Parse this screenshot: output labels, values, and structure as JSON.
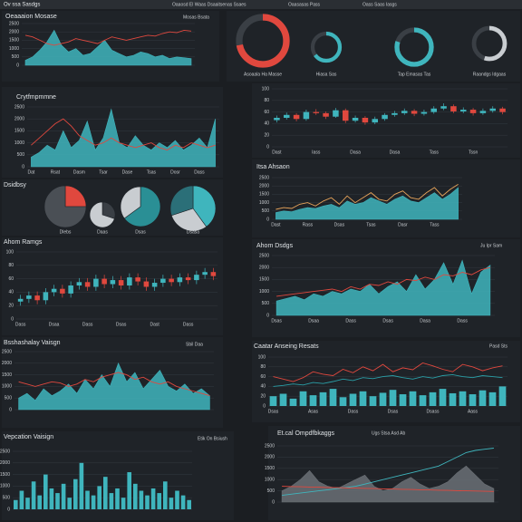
{
  "header": {
    "title": "Ov ssa Sasdgs",
    "items": [
      "Oaaosd El Waas Dsaaitsenas Ssaes",
      "Oaasasas Pass",
      "Oass Saas Iasgs"
    ]
  },
  "chart_data": [
    {
      "type": "area",
      "title": "Oeaaaion Mosase",
      "legend": "Mosas Bsata",
      "grid": true,
      "ylim": [
        0,
        2500
      ],
      "yticks": [
        0,
        500,
        1000,
        1500,
        2000,
        2500
      ],
      "series": [
        {
          "name": "Teal",
          "style": "area",
          "color": "#3fb5bd",
          "values": [
            300,
            500,
            900,
            1400,
            2100,
            1200,
            800,
            1000,
            600,
            700,
            1100,
            1500,
            900,
            700,
            500,
            600,
            800,
            700,
            500,
            600,
            400,
            500,
            450,
            400
          ]
        },
        {
          "name": "Red",
          "style": "line",
          "color": "#e0483e",
          "values": [
            1800,
            1700,
            1500,
            1300,
            1200,
            1300,
            1400,
            1600,
            1500,
            1400,
            1300,
            1500,
            1700,
            1600,
            1500,
            1600,
            1700,
            1800,
            1750,
            1900,
            2000,
            1950,
            2100,
            2050
          ]
        }
      ]
    },
    {
      "type": "donut",
      "categories": [
        "Asoaala Ha Masse",
        "Hiasa Sas",
        "Tap Emasas Tas",
        "Raandgs Idgaas"
      ],
      "values": [
        72,
        65,
        80,
        55
      ],
      "colors": [
        "#e0483e",
        "#3fb5bd",
        "#3fb5bd",
        "#c9cdd1"
      ]
    },
    {
      "type": "area",
      "title": "Crytfmpmmne",
      "grid": true,
      "ylim": [
        0,
        2500
      ],
      "yticks": [
        0,
        500,
        1000,
        1500,
        2000,
        2500
      ],
      "categories": [
        "Dat",
        null,
        null,
        "Rsat",
        null,
        null,
        "Dasm",
        null,
        null,
        "Tsar",
        null,
        null,
        "Dase",
        null,
        null,
        "Tsas",
        null,
        null,
        "Dosr",
        null,
        null,
        "Dass",
        null,
        null
      ],
      "series": [
        {
          "name": "Teal",
          "style": "area",
          "color": "#3fb5bd",
          "values": [
            400,
            600,
            900,
            700,
            1500,
            800,
            1100,
            1900,
            700,
            1200,
            2400,
            1000,
            800,
            1300,
            900,
            700,
            1000,
            800,
            1100,
            700,
            900,
            1200,
            800,
            2000
          ]
        },
        {
          "name": "Red",
          "style": "line",
          "color": "#e0483e",
          "values": [
            900,
            1200,
            1500,
            1800,
            2000,
            1700,
            1300,
            1100,
            900,
            1000,
            1200,
            1000,
            900,
            800,
            900,
            1000,
            800,
            700,
            900,
            800,
            1000,
            900,
            800,
            900
          ]
        }
      ]
    },
    {
      "type": "candlestick",
      "grid": true,
      "ylim": [
        0,
        100
      ],
      "yticks": [
        0,
        20,
        40,
        60,
        80,
        100
      ],
      "up_color": "#3fb5bd",
      "down_color": "#e0483e",
      "categories": [
        "Dast",
        null,
        null,
        null,
        "Iass",
        null,
        null,
        null,
        "Dasa",
        null,
        null,
        null,
        "Dasa",
        null,
        null,
        null,
        "Tass",
        null,
        null,
        null,
        "Tssn",
        null,
        null,
        null
      ],
      "open": [
        46,
        50,
        55,
        48,
        60,
        58,
        52,
        63,
        45,
        50,
        42,
        48,
        55,
        58,
        62,
        57,
        60,
        66,
        70,
        61,
        64,
        58,
        62,
        66
      ],
      "high": [
        54,
        59,
        58,
        64,
        65,
        61,
        67,
        66,
        54,
        53,
        52,
        58,
        62,
        66,
        65,
        64,
        70,
        75,
        73,
        68,
        67,
        66,
        70,
        69
      ],
      "low": [
        42,
        47,
        44,
        45,
        55,
        48,
        50,
        41,
        42,
        38,
        39,
        45,
        52,
        55,
        53,
        54,
        57,
        63,
        58,
        58,
        54,
        55,
        59,
        56
      ],
      "close": [
        50,
        55,
        48,
        60,
        58,
        52,
        63,
        45,
        50,
        42,
        48,
        55,
        58,
        62,
        57,
        60,
        66,
        70,
        61,
        64,
        58,
        62,
        66,
        60
      ]
    },
    {
      "type": "area",
      "title": "Itsa Ahsaon",
      "grid": true,
      "ylim": [
        0,
        2500
      ],
      "yticks": [
        0,
        500,
        1000,
        1500,
        2000,
        2500
      ],
      "categories": [
        "Dast",
        null,
        null,
        null,
        "Rass",
        null,
        null,
        null,
        "Dsas",
        null,
        null,
        null,
        "Tsas",
        null,
        null,
        null,
        "Dasr",
        null,
        null,
        null,
        "Tass",
        null,
        null,
        null
      ],
      "series": [
        {
          "name": "Teal",
          "style": "area",
          "color": "#3fb5bd",
          "values": [
            400,
            500,
            450,
            600,
            700,
            650,
            800,
            900,
            700,
            1100,
            900,
            1000,
            1300,
            1100,
            900,
            1200,
            1400,
            1100,
            1000,
            1300,
            1600,
            1200,
            1500,
            1900
          ]
        },
        {
          "name": "Orange",
          "style": "line",
          "color": "#e8a45a",
          "values": [
            600,
            700,
            650,
            900,
            1000,
            800,
            1100,
            1300,
            900,
            1400,
            1000,
            1300,
            1600,
            1200,
            1100,
            1500,
            1700,
            1300,
            1200,
            1600,
            1900,
            1400,
            1800,
            2100
          ]
        }
      ]
    },
    {
      "type": "pie",
      "title": "Dsidbsy",
      "series": [
        {
          "name": "Dlebs",
          "values": [
            25,
            75
          ],
          "colors": [
            "#e0483e",
            "#4a4f55"
          ]
        },
        {
          "name": "Daas",
          "values": [
            30,
            70
          ],
          "colors": [
            "#3a3f45",
            "#c9cdd1"
          ]
        },
        {
          "name": "Dsas",
          "values": [
            65,
            35
          ],
          "colors": [
            "#2a8f95",
            "#c9cdd1"
          ]
        },
        {
          "name": "Dsasa",
          "values": [
            40,
            30,
            30
          ],
          "colors": [
            "#3fb5bd",
            "#c9cdd1",
            "#2b6f78"
          ]
        }
      ]
    },
    {
      "type": "candlestick",
      "title": "Ahom Ramgs",
      "grid": true,
      "ylim": [
        0,
        100
      ],
      "yticks": [
        0,
        20,
        40,
        60,
        80,
        100
      ],
      "up_color": "#3fb5bd",
      "down_color": "#e0483e",
      "categories": [
        "Dass",
        null,
        null,
        null,
        "Dsaa",
        null,
        null,
        null,
        "Dass",
        null,
        null,
        null,
        "Dsas",
        null,
        null,
        null,
        "Dast",
        null,
        null,
        null,
        "Dass",
        null,
        null,
        null
      ],
      "open": [
        26,
        30,
        35,
        28,
        40,
        45,
        38,
        50,
        55,
        48,
        60,
        52,
        58,
        50,
        62,
        56,
        48,
        54,
        60,
        55,
        62,
        58,
        66,
        70
      ],
      "high": [
        36,
        41,
        41,
        46,
        51,
        51,
        56,
        61,
        61,
        66,
        66,
        64,
        64,
        68,
        68,
        62,
        60,
        66,
        66,
        68,
        68,
        72,
        76,
        76
      ],
      "low": [
        20,
        24,
        22,
        22,
        34,
        32,
        32,
        44,
        42,
        42,
        46,
        46,
        44,
        44,
        50,
        42,
        42,
        48,
        49,
        49,
        52,
        52,
        60,
        58
      ],
      "close": [
        30,
        35,
        28,
        40,
        45,
        38,
        50,
        55,
        48,
        60,
        52,
        58,
        50,
        62,
        56,
        48,
        54,
        60,
        55,
        62,
        58,
        66,
        70,
        64
      ]
    },
    {
      "type": "area",
      "title": "Ahom Dsdgs",
      "legend": "Ju Ipr Sam",
      "grid": true,
      "ylim": [
        0,
        2500
      ],
      "yticks": [
        0,
        500,
        1000,
        1500,
        2000,
        2500
      ],
      "categories": [
        "Dsas",
        null,
        null,
        null,
        "Dsaa",
        null,
        null,
        null,
        "Dass",
        null,
        null,
        null,
        "Dsas",
        null,
        null,
        null,
        "Dasa",
        null,
        null,
        null,
        "Dass",
        null,
        null,
        null
      ],
      "series": [
        {
          "name": "Teal",
          "style": "area",
          "color": "#3fb5bd",
          "values": [
            600,
            700,
            800,
            650,
            900,
            800,
            1000,
            900,
            1100,
            1000,
            1300,
            900,
            1200,
            1400,
            1000,
            1700,
            1100,
            1500,
            2200,
            1300,
            2300,
            900,
            1800,
            2100
          ]
        },
        {
          "name": "Red",
          "style": "line",
          "color": "#e0483e",
          "values": [
            800,
            850,
            900,
            950,
            1000,
            1050,
            1100,
            1000,
            1200,
            1100,
            1300,
            1250,
            1400,
            1300,
            1500,
            1450,
            1600,
            1500,
            1700,
            1650,
            1800,
            1700,
            1900,
            2000
          ]
        }
      ]
    },
    {
      "type": "area",
      "title": "Bsshashalay Vaisgn",
      "legend": "Sbil Daa",
      "grid": true,
      "ylim": [
        0,
        2500
      ],
      "yticks": [
        0,
        500,
        1000,
        1500,
        2000,
        2500
      ],
      "series": [
        {
          "name": "Teal",
          "style": "area",
          "color": "#3fb5bd",
          "values": [
            500,
            700,
            400,
            900,
            600,
            800,
            1100,
            700,
            1300,
            900,
            1500,
            1000,
            2000,
            1200,
            1600,
            900,
            1300,
            1700,
            1000,
            800,
            1100,
            700,
            900,
            600
          ]
        },
        {
          "name": "Red",
          "style": "line",
          "color": "#e0483e",
          "values": [
            1200,
            1100,
            1000,
            1100,
            1200,
            1150,
            1000,
            1100,
            1300,
            1200,
            1400,
            1500,
            1600,
            1500,
            1300,
            1400,
            1200,
            1100,
            1200,
            1000,
            900,
            800,
            700,
            600
          ]
        }
      ]
    },
    {
      "type": "bar",
      "title": "Caatar Anseing Resats",
      "legend": "Pasd Sts",
      "grid": true,
      "ylim": [
        0,
        100
      ],
      "yticks": [
        0,
        20,
        40,
        60,
        80,
        100
      ],
      "categories": [
        "Dsas",
        null,
        null,
        null,
        "Asas",
        null,
        null,
        null,
        "Dass",
        null,
        null,
        null,
        "Dsas",
        null,
        null,
        null,
        "Dsass",
        null,
        null,
        null,
        "Aass",
        null,
        null,
        null
      ],
      "series": [
        {
          "name": "Teal",
          "style": "bar",
          "color": "#3fb5bd",
          "values": [
            20,
            25,
            15,
            30,
            22,
            28,
            35,
            18,
            25,
            30,
            20,
            27,
            33,
            24,
            30,
            22,
            28,
            35,
            26,
            30,
            24,
            32,
            28,
            40
          ]
        },
        {
          "name": "Red",
          "style": "line",
          "color": "#e0483e",
          "values": [
            60,
            55,
            50,
            58,
            70,
            65,
            62,
            75,
            68,
            80,
            72,
            85,
            70,
            78,
            74,
            88,
            82,
            75,
            70,
            85,
            80,
            72,
            78,
            82
          ]
        },
        {
          "name": "Line",
          "style": "line",
          "color": "#2a9fa7",
          "values": [
            40,
            42,
            45,
            43,
            48,
            46,
            50,
            55,
            52,
            58,
            56,
            60,
            62,
            58,
            55,
            60,
            57,
            62,
            64,
            60,
            58,
            62,
            60,
            58
          ]
        }
      ]
    },
    {
      "type": "bar",
      "title": "Vepcation Vaisign",
      "legend": "Etik On Bsiush",
      "grid": true,
      "ylim": [
        0,
        2500
      ],
      "yticks": [
        0,
        500,
        1000,
        1500,
        2000,
        2500
      ],
      "series": [
        {
          "name": "Teal",
          "style": "bar",
          "color": "#3fb5bd",
          "values": [
            400,
            800,
            500,
            1200,
            600,
            1500,
            900,
            700,
            1100,
            500,
            1300,
            2000,
            800,
            600,
            1000,
            1400,
            700,
            900,
            500,
            1600,
            1100,
            800,
            600,
            900,
            700,
            1200,
            500,
            800,
            600,
            400
          ]
        }
      ]
    },
    {
      "type": "area",
      "title": "Et.cal Ompdfbkaggs",
      "legend": "Ugs Stsa Asd Ab",
      "grid": true,
      "ylim": [
        0,
        2500
      ],
      "yticks": [
        0,
        500,
        1000,
        1500,
        2000,
        2500
      ],
      "series": [
        {
          "name": "Gray",
          "style": "area",
          "color": "#6b7075",
          "values": [
            500,
            700,
            1000,
            1400,
            900,
            700,
            600,
            800,
            1000,
            1200,
            700,
            500,
            600,
            900,
            1100,
            800,
            600,
            700,
            900,
            1300,
            1600,
            1200,
            800,
            600
          ]
        },
        {
          "name": "Teal",
          "style": "line",
          "color": "#3fb5bd",
          "values": [
            300,
            350,
            400,
            450,
            500,
            550,
            600,
            650,
            700,
            800,
            900,
            1000,
            1100,
            1200,
            1300,
            1400,
            1500,
            1600,
            1800,
            2000,
            2200,
            2300,
            2350,
            2400
          ]
        },
        {
          "name": "Red",
          "style": "line",
          "color": "#e0483e",
          "values": [
            700,
            690,
            680,
            670,
            660,
            650,
            640,
            630,
            620,
            610,
            600,
            590,
            580,
            570,
            560,
            550,
            540,
            530,
            520,
            510,
            500,
            490,
            480,
            470
          ]
        }
      ]
    }
  ]
}
